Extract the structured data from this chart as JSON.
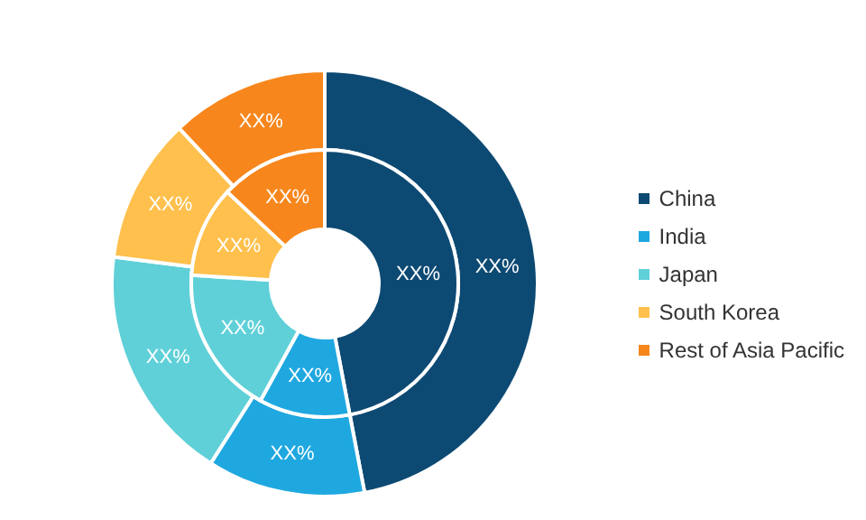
{
  "chart_data": {
    "type": "donut",
    "categories": [
      "China",
      "India",
      "Japan",
      "South Korea",
      "Rest of Asia Pacific"
    ],
    "colors": [
      "#0d4a73",
      "#1fa8e0",
      "#5fd0d8",
      "#ffc04d",
      "#f7861c"
    ],
    "series": [
      {
        "values": [
          47,
          12,
          18,
          11,
          12
        ],
        "value_labels": [
          "XX%",
          "XX%",
          "XX%",
          "XX%",
          "XX%"
        ]
      },
      {
        "values": [
          47,
          11,
          18,
          11,
          13
        ],
        "value_labels": [
          "XX%",
          "XX%",
          "XX%",
          "XX%",
          "XX%"
        ]
      }
    ],
    "legend": "right"
  }
}
